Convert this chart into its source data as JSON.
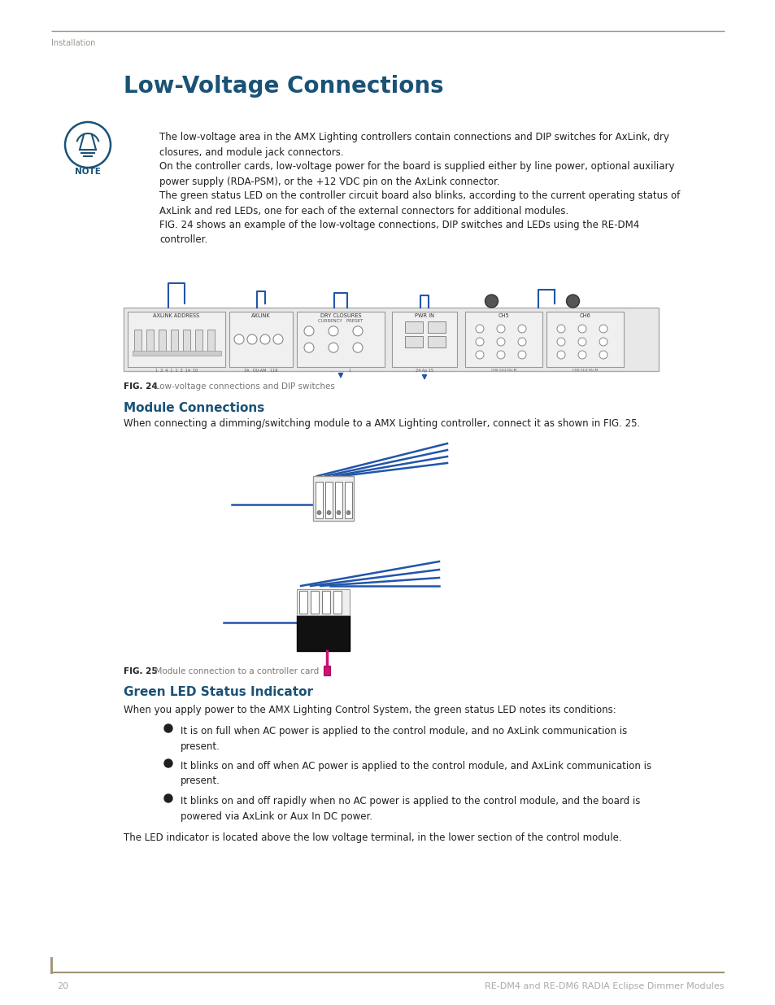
{
  "page_title": "Low-Voltage Connections",
  "section_header": "Installation",
  "header_line_color": "#9e9372",
  "title_color": "#1a5276",
  "section_title_color": "#1a5276",
  "body_text_color": "#231f20",
  "caption_bold_color": "#231f20",
  "caption_light_color": "#777777",
  "footer_text_color": "#aaaaaa",
  "footer_line_color": "#9e9372",
  "bg_color": "#ffffff",
  "note_icon_color": "#1a5276",
  "wire_blue": "#2255aa",
  "wire_pink": "#cc1177",
  "body_paragraphs": [
    "The low-voltage area in the AMX Lighting controllers contain connections and DIP switches for AxLink, dry\nclosures, and module jack connectors.",
    "On the controller cards, low-voltage power for the board is supplied either by line power, optional auxiliary\npower supply (RDA-PSM), or the +12 VDC pin on the AxLink connector.",
    "The green status LED on the controller circuit board also blinks, according to the current operating status of\nAxLink and red LEDs, one for each of the external connectors for additional modules.",
    "FIG. 24 shows an example of the low-voltage connections, DIP switches and LEDs using the RE-DM4\ncontroller."
  ],
  "fig24_caption_bold": "FIG. 24",
  "fig24_caption_rest": "  Low-voltage connections and DIP switches",
  "module_connections_title": "Module Connections",
  "module_connections_text": "When connecting a dimming/switching module to a AMX Lighting controller, connect it as shown in FIG. 25.",
  "fig25_caption_bold": "FIG. 25",
  "fig25_caption_rest": "  Module connection to a controller card",
  "green_led_title": "Green LED Status Indicator",
  "green_led_intro": "When you apply power to the AMX Lighting Control System, the green status LED notes its conditions:",
  "green_led_bullets": [
    "It is on full when AC power is applied to the control module, and no AxLink communication is\npresent.",
    "It blinks on and off when AC power is applied to the control module, and AxLink communication is\npresent.",
    "It blinks on and off rapidly when no AC power is applied to the control module, and the board is\npowered via AxLink or Aux In DC power."
  ],
  "green_led_closing": "The LED indicator is located above the low voltage terminal, in the lower section of the control module.",
  "footer_page": "20",
  "footer_title": "RE-DM4 and RE-DM6 RADIA Eclipse Dimmer Modules"
}
